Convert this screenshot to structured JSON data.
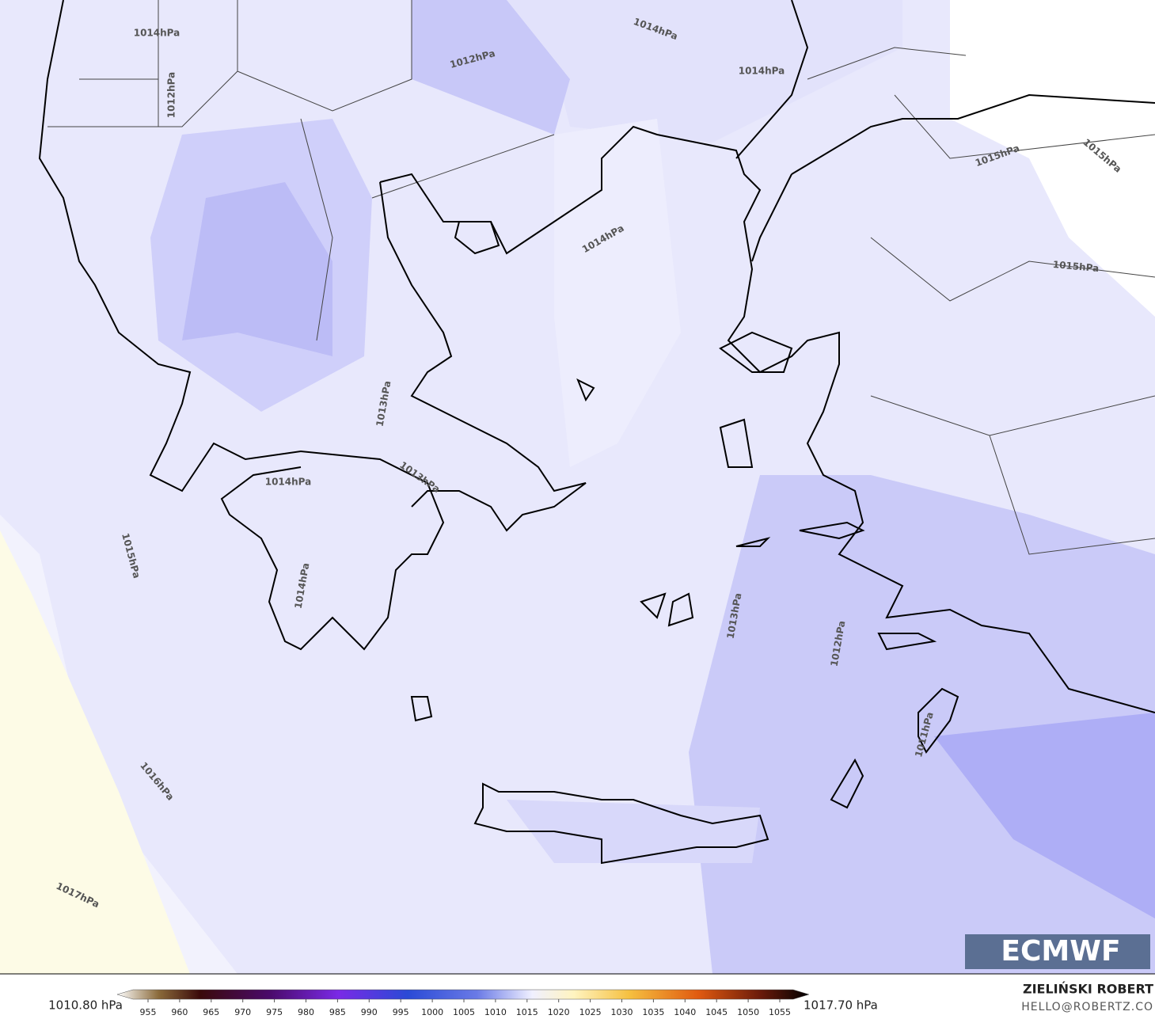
{
  "map": {
    "contour_labels": [
      "1014hPa",
      "1012hPa",
      "1014hPa",
      "1014hPa",
      "1012hPa",
      "1015hPa",
      "1015hPa",
      "1014hPa",
      "1015hPa",
      "1013hPa",
      "1014hPa",
      "1013hPa",
      "1015hPa",
      "1014hPa",
      "1013hPa",
      "1012hPa",
      "1011hPa",
      "1016hPa",
      "1017hPa"
    ],
    "logo": "ECMWF"
  },
  "colorbar": {
    "min_label": "1010.80 hPa",
    "max_label": "1017.70 hPa",
    "ticks": [
      955,
      960,
      965,
      970,
      975,
      980,
      985,
      990,
      995,
      1000,
      1005,
      1010,
      1015,
      1020,
      1025,
      1030,
      1035,
      1040,
      1045,
      1050,
      1055
    ]
  },
  "credit": {
    "name": "ZIELIŃSKI ROBERT",
    "email": "HELLO@ROBERTZ.CO"
  }
}
